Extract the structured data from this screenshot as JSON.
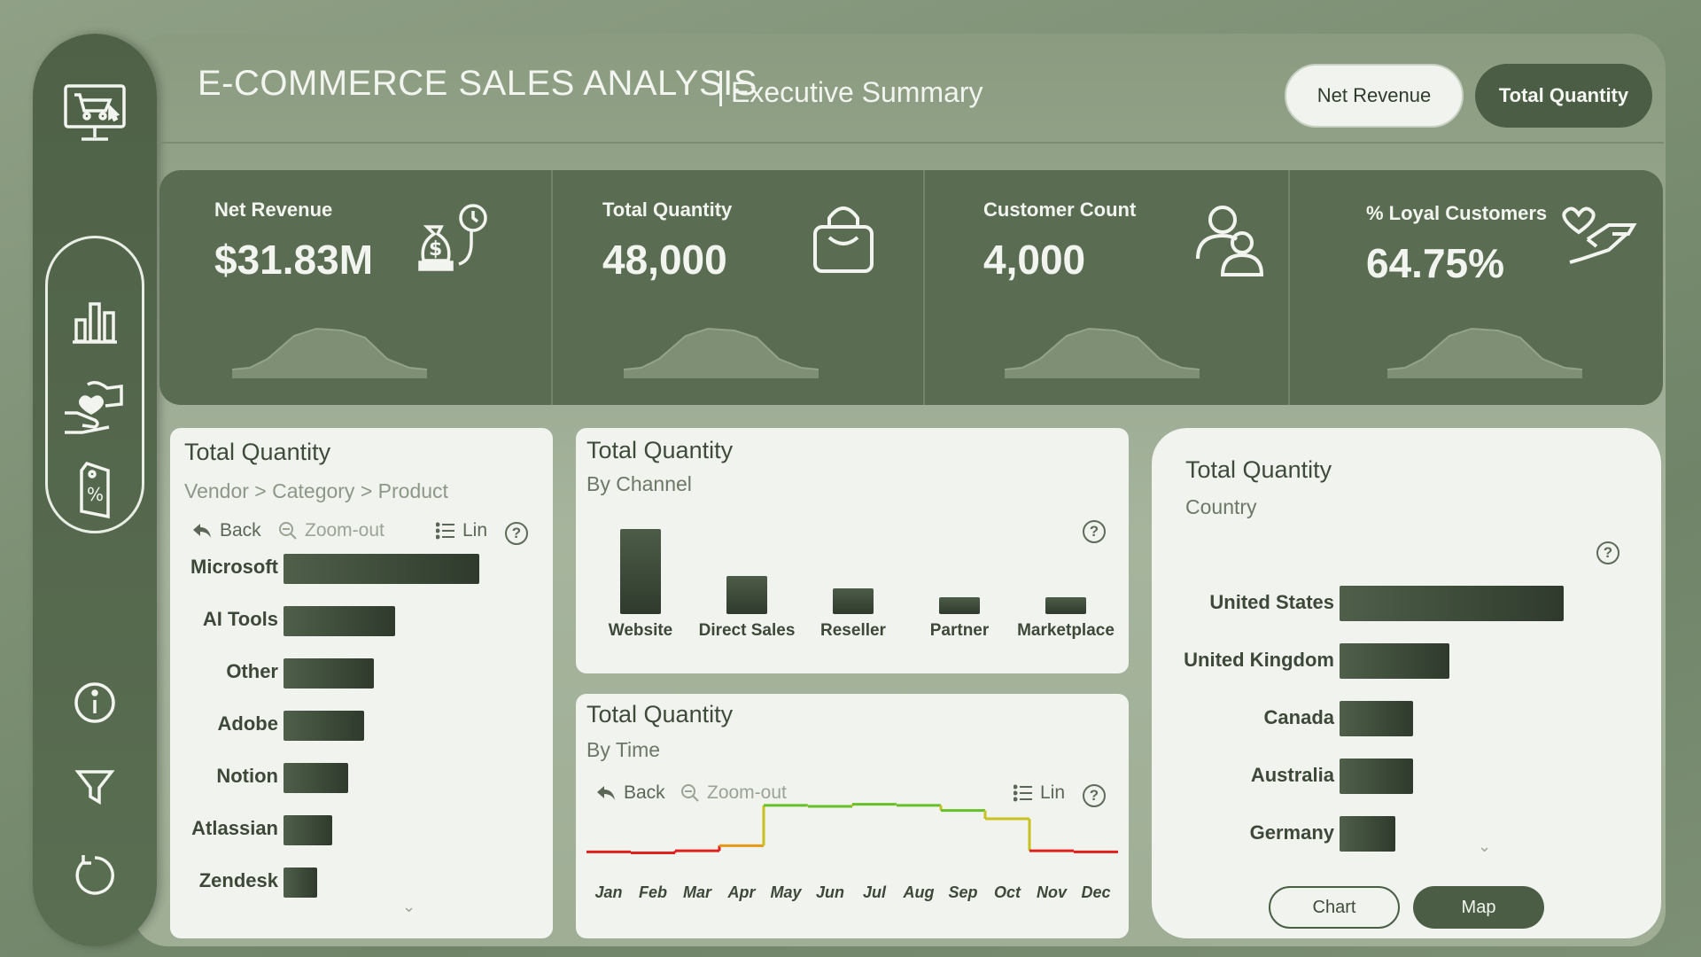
{
  "header": {
    "title": "E-COMMERCE SALES ANALYSIS",
    "subtitle": "Executive Summary",
    "buttons": {
      "net_revenue": "Net Revenue",
      "total_quantity": "Total Quantity"
    }
  },
  "sidebar": {
    "icons": [
      "cart-monitor-icon",
      "bar-chart-icon",
      "loyalty-hands-icon",
      "discount-tag-icon",
      "info-icon",
      "filter-icon",
      "reset-icon"
    ]
  },
  "kpis": [
    {
      "label": "Net Revenue",
      "value": "$31.83M",
      "icon": "money-bag-icon"
    },
    {
      "label": "Total Quantity",
      "value": "48,000",
      "icon": "shopping-bag-icon"
    },
    {
      "label": "Customer Count",
      "value": "4,000",
      "icon": "customers-icon"
    },
    {
      "label": "% Loyal Customers",
      "value": "64.75%",
      "icon": "heart-hand-icon"
    }
  ],
  "vendor_card": {
    "title": "Total Quantity",
    "breadcrumb": "Vendor > Category > Product",
    "tools": {
      "back": "Back",
      "zoom_out": "Zoom-out",
      "lin": "Lin"
    },
    "help": "?"
  },
  "channel_card": {
    "title": "Total Quantity",
    "subtitle": "By Channel",
    "help": "?"
  },
  "time_card": {
    "title": "Total Quantity",
    "subtitle": "By Time",
    "tools": {
      "back": "Back",
      "zoom_out": "Zoom-out",
      "lin": "Lin"
    },
    "help": "?"
  },
  "country_card": {
    "title": "Total Quantity",
    "subtitle": "Country",
    "help": "?",
    "buttons": {
      "chart": "Chart",
      "map": "Map"
    }
  },
  "chart_data": [
    {
      "type": "bar",
      "orientation": "horizontal",
      "categories": [
        "Microsoft",
        "AI Tools",
        "Other",
        "Adobe",
        "Notion",
        "Atlassian",
        "Zendesk"
      ],
      "values": [
        100,
        57,
        46,
        41,
        33,
        25,
        17
      ]
    },
    {
      "type": "bar",
      "categories": [
        "Website",
        "Direct Sales",
        "Reseller",
        "Partner",
        "Marketplace"
      ],
      "values": [
        100,
        45,
        30,
        20,
        20
      ]
    },
    {
      "type": "line",
      "x": [
        "Jan",
        "Feb",
        "Mar",
        "Apr",
        "May",
        "Jun",
        "Jul",
        "Aug",
        "Sep",
        "Oct",
        "Nov",
        "Dec"
      ],
      "values": [
        40,
        39,
        41,
        46,
        85,
        84,
        86,
        85,
        80,
        72,
        41,
        40
      ]
    },
    {
      "type": "bar",
      "orientation": "horizontal",
      "categories": [
        "United States",
        "United Kingdom",
        "Canada",
        "Australia",
        "Germany"
      ],
      "values": [
        100,
        49,
        33,
        33,
        25
      ]
    }
  ]
}
